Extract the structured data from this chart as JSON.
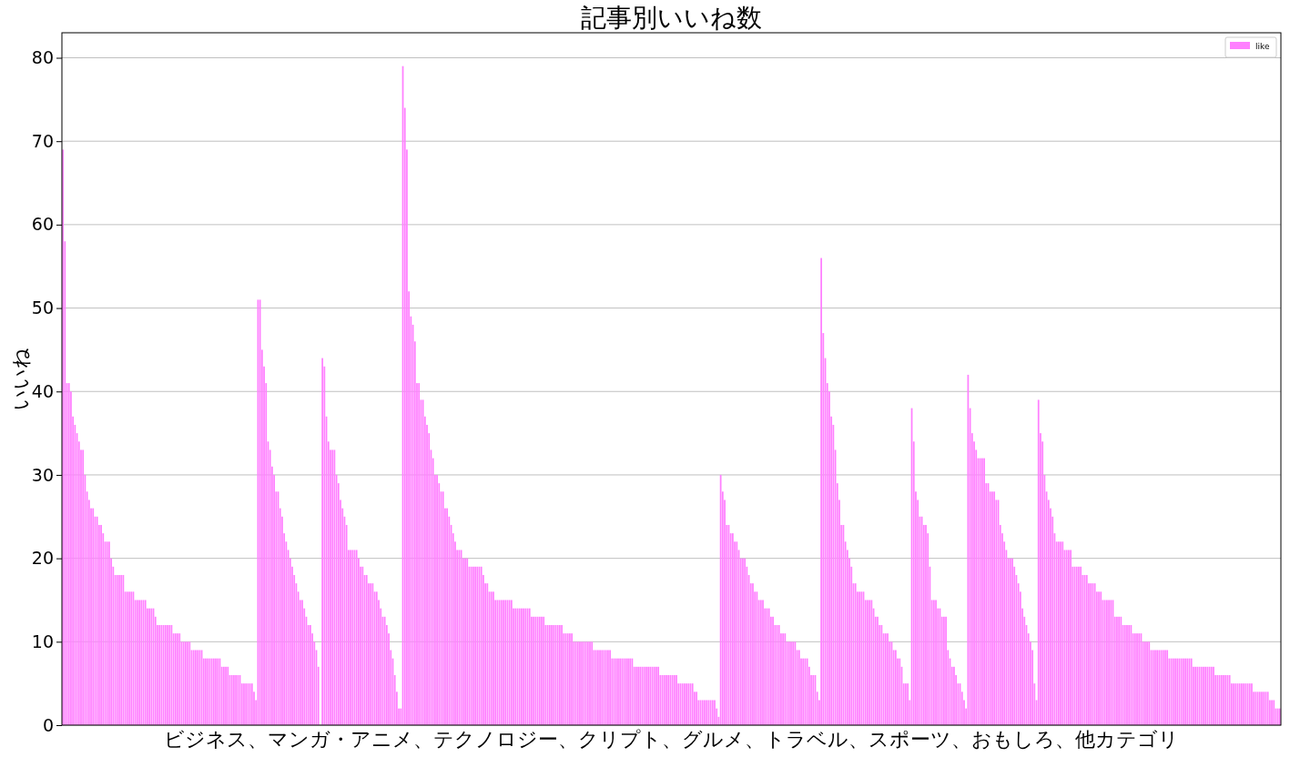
{
  "chart_data": {
    "type": "bar",
    "title": "記事別いいね数",
    "xlabel": "ビジネス、マンガ・アニメ、テクノロジー、クリプト、グルメ、トラベル、スポーツ、おもしろ、他カテゴリ",
    "ylabel": "いいね",
    "ylim": [
      0,
      83
    ],
    "yticks": [
      0,
      10,
      20,
      30,
      40,
      50,
      60,
      70,
      80
    ],
    "grid": "y",
    "legend": "top right",
    "series": [
      {
        "name": "like",
        "color": "#ff80ff",
        "values": [
          69,
          58,
          41,
          41,
          40,
          37,
          36,
          35,
          34,
          33,
          33,
          30,
          28,
          27,
          26,
          26,
          25,
          25,
          24,
          24,
          23,
          22,
          22,
          22,
          20,
          19,
          18,
          18,
          18,
          18,
          18,
          16,
          16,
          16,
          16,
          16,
          15,
          15,
          15,
          15,
          15,
          15,
          14,
          14,
          14,
          14,
          13,
          12,
          12,
          12,
          12,
          12,
          12,
          12,
          12,
          11,
          11,
          11,
          11,
          10,
          10,
          10,
          10,
          10,
          9,
          9,
          9,
          9,
          9,
          9,
          8,
          8,
          8,
          8,
          8,
          8,
          8,
          8,
          8,
          7,
          7,
          7,
          7,
          6,
          6,
          6,
          6,
          6,
          6,
          5,
          5,
          5,
          5,
          5,
          5,
          4,
          3,
          51,
          51,
          45,
          43,
          41,
          34,
          33,
          31,
          30,
          28,
          28,
          26,
          25,
          23,
          22,
          21,
          20,
          19,
          18,
          17,
          16,
          15,
          15,
          14,
          13,
          12,
          12,
          11,
          10,
          9,
          7,
          0,
          44,
          43,
          37,
          34,
          33,
          33,
          33,
          30,
          29,
          27,
          26,
          25,
          24,
          21,
          21,
          21,
          21,
          21,
          20,
          19,
          19,
          18,
          18,
          17,
          17,
          17,
          16,
          16,
          15,
          14,
          13,
          13,
          12,
          11,
          9,
          8,
          6,
          4,
          2,
          2,
          79,
          74,
          69,
          52,
          49,
          48,
          46,
          41,
          41,
          39,
          39,
          37,
          36,
          35,
          33,
          32,
          30,
          30,
          29,
          28,
          28,
          26,
          26,
          25,
          24,
          23,
          22,
          21,
          21,
          21,
          20,
          20,
          20,
          19,
          19,
          19,
          19,
          19,
          19,
          19,
          18,
          17,
          17,
          16,
          16,
          16,
          15,
          15,
          15,
          15,
          15,
          15,
          15,
          15,
          15,
          14,
          14,
          14,
          14,
          14,
          14,
          14,
          14,
          14,
          13,
          13,
          13,
          13,
          13,
          13,
          13,
          12,
          12,
          12,
          12,
          12,
          12,
          12,
          12,
          12,
          11,
          11,
          11,
          11,
          11,
          10,
          10,
          10,
          10,
          10,
          10,
          10,
          10,
          10,
          10,
          9,
          9,
          9,
          9,
          9,
          9,
          9,
          9,
          9,
          8,
          8,
          8,
          8,
          8,
          8,
          8,
          8,
          8,
          8,
          8,
          7,
          7,
          7,
          7,
          7,
          7,
          7,
          7,
          7,
          7,
          7,
          7,
          7,
          6,
          6,
          6,
          6,
          6,
          6,
          6,
          6,
          6,
          5,
          5,
          5,
          5,
          5,
          5,
          5,
          5,
          4,
          4,
          3,
          3,
          3,
          3,
          3,
          3,
          3,
          3,
          3,
          2,
          1,
          30,
          28,
          27,
          24,
          24,
          23,
          23,
          22,
          22,
          21,
          20,
          20,
          20,
          19,
          18,
          17,
          17,
          16,
          16,
          15,
          15,
          15,
          14,
          14,
          14,
          13,
          13,
          12,
          12,
          12,
          11,
          11,
          11,
          10,
          10,
          10,
          10,
          10,
          9,
          9,
          8,
          8,
          8,
          8,
          7,
          6,
          6,
          6,
          4,
          3,
          56,
          47,
          44,
          41,
          40,
          37,
          36,
          33,
          29,
          27,
          24,
          24,
          22,
          21,
          20,
          19,
          17,
          17,
          16,
          16,
          16,
          16,
          15,
          15,
          15,
          15,
          14,
          13,
          13,
          12,
          12,
          11,
          11,
          11,
          10,
          10,
          9,
          9,
          8,
          8,
          7,
          5,
          5,
          5,
          3,
          38,
          34,
          28,
          27,
          25,
          25,
          24,
          24,
          23,
          19,
          15,
          15,
          15,
          14,
          14,
          13,
          13,
          13,
          9,
          8,
          7,
          7,
          6,
          5,
          5,
          4,
          3,
          2,
          42,
          38,
          35,
          34,
          33,
          32,
          32,
          32,
          32,
          29,
          29,
          28,
          28,
          28,
          27,
          27,
          24,
          23,
          22,
          21,
          20,
          20,
          20,
          19,
          18,
          17,
          16,
          14,
          13,
          12,
          11,
          10,
          9,
          5,
          3,
          39,
          35,
          34,
          30,
          28,
          27,
          26,
          25,
          23,
          22,
          22,
          22,
          22,
          21,
          21,
          21,
          21,
          19,
          19,
          19,
          19,
          19,
          18,
          18,
          18,
          17,
          17,
          17,
          17,
          16,
          16,
          16,
          15,
          15,
          15,
          15,
          15,
          15,
          13,
          13,
          13,
          13,
          12,
          12,
          12,
          12,
          12,
          11,
          11,
          11,
          11,
          11,
          10,
          10,
          10,
          10,
          9,
          9,
          9,
          9,
          9,
          9,
          9,
          9,
          9,
          8,
          8,
          8,
          8,
          8,
          8,
          8,
          8,
          8,
          8,
          8,
          8,
          7,
          7,
          7,
          7,
          7,
          7,
          7,
          7,
          7,
          7,
          7,
          6,
          6,
          6,
          6,
          6,
          6,
          6,
          6,
          5,
          5,
          5,
          5,
          5,
          5,
          5,
          5,
          5,
          5,
          5,
          4,
          4,
          4,
          4,
          4,
          4,
          4,
          4,
          3,
          3,
          3,
          2,
          2,
          2
        ]
      }
    ],
    "categories": [
      null,
      null,
      null,
      null,
      null,
      null,
      null,
      null,
      null,
      null,
      null,
      null,
      null,
      null,
      null,
      null,
      null,
      null,
      null,
      null,
      null,
      null,
      null,
      null,
      null,
      null,
      null,
      null,
      null,
      null,
      null,
      null,
      null,
      null,
      null,
      null,
      null,
      null,
      null,
      null,
      null,
      null,
      null,
      null,
      null,
      null,
      null,
      null,
      null,
      null,
      null,
      null,
      null,
      null,
      null,
      null,
      null,
      null,
      null,
      null,
      null,
      null,
      null,
      null,
      null,
      null,
      null,
      null,
      null,
      null,
      null,
      null,
      null,
      null,
      null,
      null,
      null,
      null,
      null,
      null,
      null,
      null,
      null,
      null,
      null,
      null,
      null,
      null,
      null,
      null,
      null,
      null,
      null,
      null,
      null,
      null,
      null,
      null,
      null,
      null,
      null,
      null,
      null,
      null,
      null,
      null,
      null,
      null,
      null,
      null,
      null,
      null,
      null,
      null,
      null,
      null,
      null,
      null,
      null,
      null,
      null,
      null,
      null,
      null,
      null,
      null,
      null,
      null,
      null,
      null,
      null,
      null,
      null,
      null,
      null,
      null,
      null,
      null,
      null,
      null,
      null,
      null,
      null,
      null,
      null,
      null,
      null,
      null,
      null,
      null,
      null,
      null,
      null,
      null,
      null,
      null,
      null,
      null,
      null,
      null,
      null,
      null,
      null,
      null,
      null,
      null,
      null,
      null,
      null,
      null,
      null,
      null,
      null,
      null,
      null,
      null,
      null,
      null,
      null,
      null,
      null,
      null,
      null,
      null,
      null,
      null,
      null,
      null,
      null,
      null,
      null,
      null,
      null,
      null,
      null,
      null,
      null,
      null,
      null,
      null,
      null,
      null,
      null,
      null,
      null,
      null,
      null,
      null,
      null,
      null,
      null,
      null,
      null,
      null,
      null,
      null,
      null,
      null,
      null,
      null,
      null,
      null,
      null,
      null,
      null,
      null,
      null,
      null,
      null,
      null,
      null,
      null,
      null,
      null,
      null,
      null,
      null,
      null,
      null,
      null,
      null,
      null,
      null,
      null,
      null,
      null,
      null,
      null,
      null,
      null,
      null,
      null,
      null,
      null,
      null,
      null,
      null,
      null,
      null,
      null,
      null,
      null,
      null,
      null,
      null,
      null,
      null,
      null,
      null,
      null,
      null,
      null,
      null,
      null,
      null,
      null,
      null,
      null,
      null,
      null,
      null,
      null,
      null,
      null,
      null,
      null,
      null,
      null,
      null,
      null,
      null,
      null,
      null,
      null,
      null,
      null,
      null,
      null,
      null,
      null,
      null,
      null,
      null,
      null,
      null,
      null,
      null,
      null,
      null,
      null,
      null,
      null,
      null,
      null,
      null,
      null,
      null,
      null,
      null,
      null,
      null,
      null,
      null,
      null,
      null,
      null,
      null,
      null,
      null,
      null,
      null,
      null,
      null,
      null,
      null,
      null,
      null,
      null,
      null,
      null,
      null,
      null,
      null,
      null,
      null,
      null,
      null,
      null,
      null,
      null,
      null,
      null,
      null,
      null,
      null,
      null,
      null,
      null,
      null,
      null,
      null,
      null,
      null,
      null,
      null,
      null,
      null,
      null,
      null,
      null,
      null,
      null,
      null,
      null,
      null,
      null,
      null,
      null,
      null,
      null,
      null,
      null,
      null,
      null,
      null,
      null,
      null,
      null,
      null,
      null,
      null,
      null,
      null,
      null,
      null,
      null,
      null,
      null,
      null,
      null,
      null,
      null,
      null,
      null,
      null,
      null,
      null,
      null,
      null,
      null,
      null,
      null,
      null,
      null,
      null,
      null,
      null,
      null,
      null,
      null,
      null,
      null,
      null,
      null,
      null,
      null,
      null,
      null,
      null,
      null,
      null,
      null,
      null,
      null,
      null,
      null,
      null,
      null,
      null,
      null,
      null,
      null,
      null,
      null,
      null,
      null,
      null,
      null,
      null,
      null,
      null,
      null,
      null,
      null,
      null,
      null,
      null,
      null,
      null,
      null,
      null,
      null,
      null,
      null,
      null,
      null,
      null,
      null,
      null,
      null,
      null,
      null,
      null,
      null,
      null,
      null,
      null,
      null,
      null,
      null,
      null,
      null,
      null,
      null,
      null,
      null,
      null,
      null,
      null,
      null,
      null,
      null,
      null,
      null,
      null,
      null,
      null,
      null,
      null,
      null,
      null,
      null,
      null,
      null,
      null,
      null,
      null,
      null,
      null,
      null,
      null,
      null,
      null,
      null,
      null,
      null,
      null,
      null,
      null,
      null,
      null,
      null,
      null,
      null,
      null,
      null,
      null,
      null,
      null,
      null,
      null,
      null,
      null,
      null,
      null,
      null,
      null,
      null,
      null,
      null,
      null,
      null,
      null,
      null,
      null,
      null,
      null,
      null,
      null,
      null,
      null,
      null,
      null,
      null,
      null,
      null,
      null,
      null,
      null,
      null,
      null,
      null,
      null,
      null,
      null,
      null,
      null,
      null,
      null,
      null,
      null,
      null,
      null,
      null,
      null,
      null,
      null,
      null,
      null,
      null,
      null,
      null,
      null,
      null,
      null,
      null,
      null,
      null,
      null,
      null,
      null,
      null,
      null,
      null,
      null,
      null,
      null,
      null,
      null,
      null,
      null,
      null,
      null,
      null,
      null,
      null
    ]
  }
}
